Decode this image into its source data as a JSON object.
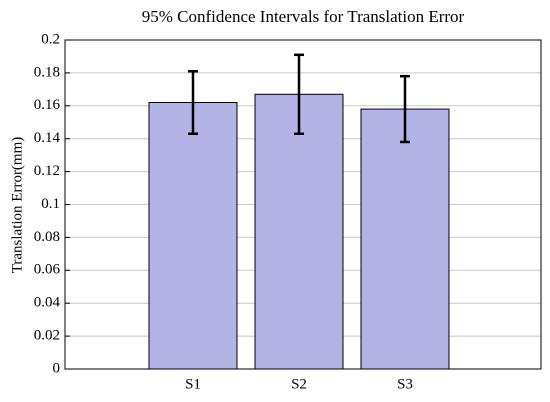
{
  "chart_data": {
    "type": "bar",
    "title": "95% Confidence Intervals for Translation Error",
    "y_label": "Translation Error(mm)",
    "categories": [
      "S1",
      "S2",
      "S3"
    ],
    "values": [
      0.162,
      0.167,
      0.158
    ],
    "errors": [
      0.019,
      0.024,
      0.02
    ],
    "color": "#b3b3e6",
    "ylim": [
      0,
      0.2
    ],
    "yticks": [
      0,
      0.02,
      0.04,
      0.06,
      0.08,
      0.1,
      0.12,
      0.14,
      0.16,
      0.18,
      0.2
    ],
    "grid": true
  }
}
